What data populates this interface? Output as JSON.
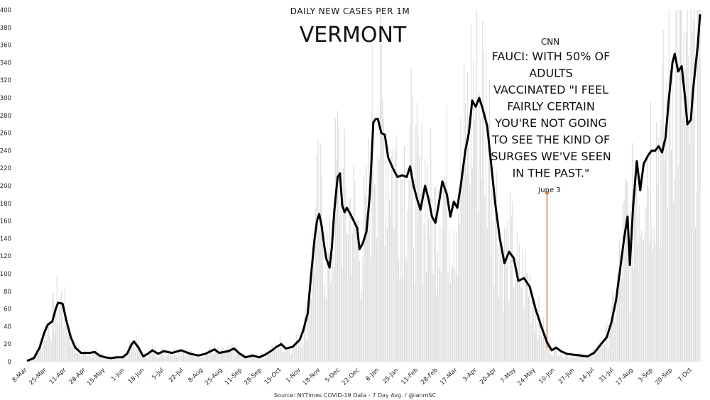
{
  "chart_data": {
    "type": "line",
    "subtitle": "DAILY NEW CASES PER 1M",
    "title": "VERMONT",
    "source": "Source: NYTimes COVID-19 Data - 7 Day Avg. / @ianmSC",
    "ylim": [
      0,
      400
    ],
    "yticks": [
      0,
      20,
      40,
      60,
      80,
      100,
      120,
      140,
      160,
      180,
      200,
      220,
      240,
      260,
      280,
      300,
      320,
      340,
      360,
      380,
      400
    ],
    "xlim": [
      "2020-03-08",
      "2021-10-14"
    ],
    "xticks": [
      {
        "label": "8-Mar",
        "date": "2020-03-08"
      },
      {
        "label": "25-Mar",
        "date": "2020-03-25"
      },
      {
        "label": "11-Apr",
        "date": "2020-04-11"
      },
      {
        "label": "28-Apr",
        "date": "2020-04-28"
      },
      {
        "label": "15-May",
        "date": "2020-05-15"
      },
      {
        "label": "1-Jun",
        "date": "2020-06-01"
      },
      {
        "label": "18-Jun",
        "date": "2020-06-18"
      },
      {
        "label": "5-Jul",
        "date": "2020-07-05"
      },
      {
        "label": "22-Jul",
        "date": "2020-07-22"
      },
      {
        "label": "8-Aug",
        "date": "2020-08-08"
      },
      {
        "label": "25-Aug",
        "date": "2020-08-25"
      },
      {
        "label": "11-Sep",
        "date": "2020-09-11"
      },
      {
        "label": "28-Sep",
        "date": "2020-09-28"
      },
      {
        "label": "15-Oct",
        "date": "2020-10-15"
      },
      {
        "label": "1-Nov",
        "date": "2020-11-01"
      },
      {
        "label": "18-Nov",
        "date": "2020-11-18"
      },
      {
        "label": "5-Dec",
        "date": "2020-12-05"
      },
      {
        "label": "22-Dec",
        "date": "2020-12-22"
      },
      {
        "label": "8-Jan",
        "date": "2021-01-08"
      },
      {
        "label": "25-Jan",
        "date": "2021-01-25"
      },
      {
        "label": "11-Feb",
        "date": "2021-02-11"
      },
      {
        "label": "28-Feb",
        "date": "2021-02-28"
      },
      {
        "label": "17-Mar",
        "date": "2021-03-17"
      },
      {
        "label": "3-Apr",
        "date": "2021-04-03"
      },
      {
        "label": "20-Apr",
        "date": "2021-04-20"
      },
      {
        "label": "7-May",
        "date": "2021-05-07"
      },
      {
        "label": "24-May",
        "date": "2021-05-24"
      },
      {
        "label": "10-Jun",
        "date": "2021-06-10"
      },
      {
        "label": "27-Jun",
        "date": "2021-06-27"
      },
      {
        "label": "14-Jul",
        "date": "2021-07-14"
      },
      {
        "label": "31-Jul",
        "date": "2021-07-31"
      },
      {
        "label": "17-Aug",
        "date": "2021-08-17"
      },
      {
        "label": "3-Sep",
        "date": "2021-09-03"
      },
      {
        "label": "20-Sep",
        "date": "2021-09-20"
      },
      {
        "label": "7-Oct",
        "date": "2021-10-07"
      }
    ],
    "series": [
      {
        "color": "#000000",
        "points": [
          [
            "2020-03-08",
            1
          ],
          [
            "2020-03-14",
            4
          ],
          [
            "2020-03-19",
            16
          ],
          [
            "2020-03-23",
            33
          ],
          [
            "2020-03-26",
            42
          ],
          [
            "2020-03-30",
            46
          ],
          [
            "2020-04-02",
            60
          ],
          [
            "2020-04-04",
            67
          ],
          [
            "2020-04-08",
            66
          ],
          [
            "2020-04-11",
            48
          ],
          [
            "2020-04-15",
            28
          ],
          [
            "2020-04-19",
            16
          ],
          [
            "2020-04-24",
            10
          ],
          [
            "2020-05-01",
            10
          ],
          [
            "2020-05-06",
            11
          ],
          [
            "2020-05-10",
            7
          ],
          [
            "2020-05-15",
            5
          ],
          [
            "2020-05-20",
            4
          ],
          [
            "2020-05-25",
            5
          ],
          [
            "2020-05-30",
            5
          ],
          [
            "2020-06-03",
            9
          ],
          [
            "2020-06-07",
            20
          ],
          [
            "2020-06-09",
            23
          ],
          [
            "2020-06-13",
            16
          ],
          [
            "2020-06-17",
            6
          ],
          [
            "2020-06-21",
            9
          ],
          [
            "2020-06-25",
            13
          ],
          [
            "2020-06-30",
            9
          ],
          [
            "2020-07-05",
            12
          ],
          [
            "2020-07-12",
            10
          ],
          [
            "2020-07-20",
            13
          ],
          [
            "2020-07-28",
            9
          ],
          [
            "2020-08-04",
            7
          ],
          [
            "2020-08-10",
            9
          ],
          [
            "2020-08-18",
            14
          ],
          [
            "2020-08-22",
            10
          ],
          [
            "2020-08-30",
            12
          ],
          [
            "2020-09-04",
            15
          ],
          [
            "2020-09-09",
            9
          ],
          [
            "2020-09-14",
            5
          ],
          [
            "2020-09-20",
            7
          ],
          [
            "2020-09-26",
            5
          ],
          [
            "2020-10-01",
            8
          ],
          [
            "2020-10-06",
            12
          ],
          [
            "2020-10-11",
            17
          ],
          [
            "2020-10-15",
            20
          ],
          [
            "2020-10-19",
            15
          ],
          [
            "2020-10-25",
            17
          ],
          [
            "2020-10-31",
            25
          ],
          [
            "2020-11-03",
            35
          ],
          [
            "2020-11-07",
            55
          ],
          [
            "2020-11-10",
            100
          ],
          [
            "2020-11-13",
            140
          ],
          [
            "2020-11-15",
            160
          ],
          [
            "2020-11-17",
            168
          ],
          [
            "2020-11-19",
            155
          ],
          [
            "2020-11-21",
            135
          ],
          [
            "2020-11-23",
            118
          ],
          [
            "2020-11-26",
            107
          ],
          [
            "2020-11-28",
            130
          ],
          [
            "2020-11-30",
            170
          ],
          [
            "2020-12-03",
            210
          ],
          [
            "2020-12-05",
            214
          ],
          [
            "2020-12-07",
            178
          ],
          [
            "2020-12-09",
            170
          ],
          [
            "2020-12-11",
            175
          ],
          [
            "2020-12-14",
            168
          ],
          [
            "2020-12-17",
            160
          ],
          [
            "2020-12-20",
            152
          ],
          [
            "2020-12-22",
            128
          ],
          [
            "2020-12-25",
            135
          ],
          [
            "2020-12-28",
            148
          ],
          [
            "2020-12-31",
            190
          ],
          [
            "2021-01-03",
            272
          ],
          [
            "2021-01-05",
            276
          ],
          [
            "2021-01-07",
            276
          ],
          [
            "2021-01-10",
            260
          ],
          [
            "2021-01-13",
            258
          ],
          [
            "2021-01-16",
            232
          ],
          [
            "2021-01-20",
            220
          ],
          [
            "2021-01-24",
            210
          ],
          [
            "2021-01-28",
            212
          ],
          [
            "2021-02-01",
            210
          ],
          [
            "2021-02-04",
            222
          ],
          [
            "2021-02-07",
            200
          ],
          [
            "2021-02-10",
            185
          ],
          [
            "2021-02-13",
            173
          ],
          [
            "2021-02-17",
            200
          ],
          [
            "2021-02-20",
            185
          ],
          [
            "2021-02-23",
            165
          ],
          [
            "2021-02-26",
            158
          ],
          [
            "2021-03-01",
            180
          ],
          [
            "2021-03-04",
            205
          ],
          [
            "2021-03-08",
            190
          ],
          [
            "2021-03-11",
            165
          ],
          [
            "2021-03-14",
            182
          ],
          [
            "2021-03-17",
            175
          ],
          [
            "2021-03-20",
            200
          ],
          [
            "2021-03-24",
            240
          ],
          [
            "2021-03-27",
            260
          ],
          [
            "2021-03-30",
            297
          ],
          [
            "2021-04-02",
            290
          ],
          [
            "2021-04-05",
            300
          ],
          [
            "2021-04-08",
            288
          ],
          [
            "2021-04-12",
            268
          ],
          [
            "2021-04-15",
            230
          ],
          [
            "2021-04-19",
            180
          ],
          [
            "2021-04-23",
            140
          ],
          [
            "2021-04-27",
            112
          ],
          [
            "2021-05-01",
            125
          ],
          [
            "2021-05-05",
            118
          ],
          [
            "2021-05-09",
            92
          ],
          [
            "2021-05-14",
            95
          ],
          [
            "2021-05-19",
            85
          ],
          [
            "2021-05-24",
            60
          ],
          [
            "2021-05-29",
            40
          ],
          [
            "2021-06-03",
            22
          ],
          [
            "2021-06-07",
            13
          ],
          [
            "2021-06-11",
            16
          ],
          [
            "2021-06-15",
            12
          ],
          [
            "2021-06-20",
            9
          ],
          [
            "2021-06-26",
            8
          ],
          [
            "2021-07-02",
            7
          ],
          [
            "2021-07-08",
            6
          ],
          [
            "2021-07-14",
            10
          ],
          [
            "2021-07-20",
            20
          ],
          [
            "2021-07-25",
            28
          ],
          [
            "2021-07-29",
            45
          ],
          [
            "2021-08-02",
            70
          ],
          [
            "2021-08-06",
            110
          ],
          [
            "2021-08-09",
            140
          ],
          [
            "2021-08-12",
            165
          ],
          [
            "2021-08-14",
            110
          ],
          [
            "2021-08-17",
            180
          ],
          [
            "2021-08-20",
            228
          ],
          [
            "2021-08-23",
            195
          ],
          [
            "2021-08-26",
            225
          ],
          [
            "2021-08-30",
            235
          ],
          [
            "2021-09-02",
            240
          ],
          [
            "2021-09-05",
            240
          ],
          [
            "2021-09-08",
            245
          ],
          [
            "2021-09-11",
            238
          ],
          [
            "2021-09-14",
            255
          ],
          [
            "2021-09-17",
            300
          ],
          [
            "2021-09-20",
            340
          ],
          [
            "2021-09-22",
            350
          ],
          [
            "2021-09-25",
            330
          ],
          [
            "2021-09-28",
            336
          ],
          [
            "2021-10-01",
            300
          ],
          [
            "2021-10-03",
            270
          ],
          [
            "2021-10-06",
            275
          ],
          [
            "2021-10-08",
            310
          ],
          [
            "2021-10-10",
            335
          ],
          [
            "2021-10-12",
            360
          ],
          [
            "2021-10-14",
            395
          ]
        ]
      }
    ],
    "annotation": {
      "source": "CNN",
      "lines": [
        "FAUCI: WITH 50% OF",
        "ADULTS",
        "VACCINATED \"I FEEL",
        "FAIRLY CERTAIN",
        "YOU'RE NOT GOING",
        "TO SEE THE KIND OF",
        "SURGES WE'VE SEEN",
        "IN THE PAST.\""
      ],
      "date_label": "June 3",
      "date": "2021-06-03",
      "marker_value": 192,
      "line_color": "#e07a3a"
    },
    "grid": false,
    "legend": "none"
  }
}
